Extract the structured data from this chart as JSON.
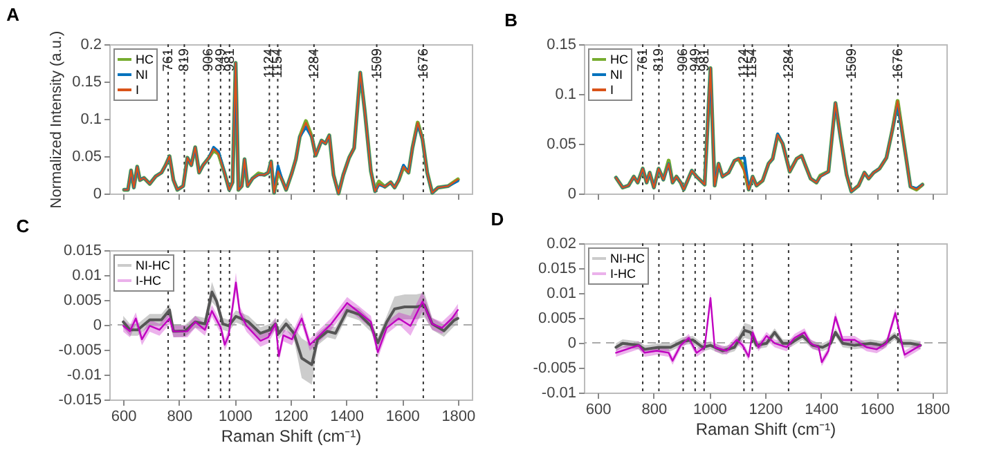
{
  "chart_data": [
    {
      "type": "line",
      "title": "A",
      "ylabel": "Normalized Intensity (a.u.)",
      "xlim": [
        550,
        1850
      ],
      "xticks": [
        600,
        800,
        1000,
        1200,
        1400,
        1600,
        1800
      ],
      "ylim": [
        0,
        0.2
      ],
      "yticks": [
        0,
        0.05,
        0.1,
        0.15,
        0.2
      ],
      "tick_labels": "y",
      "legend": "top left",
      "x": [
        603,
        617,
        628,
        638,
        650,
        660,
        674,
        695,
        716,
        737,
        752,
        766,
        780,
        794,
        815,
        830,
        844,
        858,
        872,
        886,
        907,
        924,
        942,
        963,
        980,
        992,
        1003,
        1013,
        1025,
        1035,
        1046,
        1063,
        1085,
        1106,
        1120,
        1130,
        1141,
        1155,
        1170,
        1184,
        1205,
        1219,
        1233,
        1255,
        1276,
        1290,
        1311,
        1325,
        1339,
        1354,
        1372,
        1389,
        1410,
        1428,
        1450,
        1466,
        1488,
        1503,
        1517,
        1538,
        1559,
        1573,
        1588,
        1605,
        1623,
        1637,
        1656,
        1673,
        1690,
        1708,
        1729,
        1765,
        1800
      ],
      "series": [
        {
          "name": "HC",
          "color": "#77ac30",
          "values": [
            0.005,
            0.005,
            0.031,
            0.008,
            0.036,
            0.018,
            0.021,
            0.013,
            0.023,
            0.028,
            0.038,
            0.05,
            0.018,
            0.005,
            0.01,
            0.048,
            0.038,
            0.062,
            0.028,
            0.038,
            0.048,
            0.058,
            0.053,
            0.028,
            0.005,
            0.015,
            0.175,
            0.005,
            0.01,
            0.046,
            0.01,
            0.02,
            0.027,
            0.025,
            0.028,
            0.043,
            0.001,
            0.03,
            0.018,
            0.005,
            0.028,
            0.046,
            0.076,
            0.097,
            0.076,
            0.051,
            0.071,
            0.067,
            0.078,
            0.025,
            0.0,
            0.025,
            0.048,
            0.061,
            0.162,
            0.111,
            0.03,
            0.003,
            0.016,
            0.009,
            0.015,
            0.008,
            0.018,
            0.036,
            0.028,
            0.061,
            0.095,
            0.073,
            0.028,
            0.001,
            0.008,
            0.01,
            0.019
          ]
        },
        {
          "name": "NI",
          "color": "#0072bd",
          "values": [
            0.005,
            0.005,
            0.031,
            0.008,
            0.036,
            0.018,
            0.021,
            0.013,
            0.023,
            0.028,
            0.038,
            0.05,
            0.018,
            0.005,
            0.01,
            0.048,
            0.038,
            0.062,
            0.028,
            0.038,
            0.048,
            0.062,
            0.056,
            0.028,
            0.005,
            0.015,
            0.175,
            0.005,
            0.01,
            0.046,
            0.01,
            0.02,
            0.025,
            0.025,
            0.028,
            0.043,
            0.001,
            0.037,
            0.018,
            0.005,
            0.028,
            0.046,
            0.076,
            0.089,
            0.076,
            0.051,
            0.071,
            0.067,
            0.078,
            0.025,
            0.0,
            0.025,
            0.048,
            0.061,
            0.162,
            0.111,
            0.03,
            0.003,
            0.012,
            0.009,
            0.015,
            0.008,
            0.018,
            0.038,
            0.028,
            0.061,
            0.093,
            0.073,
            0.028,
            0.001,
            0.008,
            0.01,
            0.017
          ]
        },
        {
          "name": "I",
          "color": "#d95319",
          "values": [
            0.005,
            0.005,
            0.031,
            0.008,
            0.036,
            0.018,
            0.021,
            0.013,
            0.023,
            0.028,
            0.038,
            0.05,
            0.018,
            0.005,
            0.01,
            0.048,
            0.038,
            0.062,
            0.028,
            0.038,
            0.048,
            0.06,
            0.053,
            0.028,
            0.005,
            0.015,
            0.175,
            0.005,
            0.01,
            0.046,
            0.01,
            0.02,
            0.025,
            0.025,
            0.028,
            0.043,
            0.001,
            0.03,
            0.018,
            0.005,
            0.028,
            0.046,
            0.076,
            0.095,
            0.076,
            0.051,
            0.071,
            0.067,
            0.078,
            0.025,
            0.0,
            0.025,
            0.048,
            0.061,
            0.162,
            0.111,
            0.03,
            0.003,
            0.013,
            0.009,
            0.015,
            0.008,
            0.018,
            0.036,
            0.028,
            0.061,
            0.095,
            0.073,
            0.028,
            0.001,
            0.008,
            0.01,
            0.019
          ]
        }
      ],
      "ref_lines": [
        {
          "axis": "x",
          "value": 761,
          "label": "761",
          "line_style": "dotted"
        },
        {
          "axis": "x",
          "value": 819,
          "label": "819",
          "line_style": "dotted"
        },
        {
          "axis": "x",
          "value": 906,
          "label": "906",
          "line_style": "dotted"
        },
        {
          "axis": "x",
          "value": 949,
          "label": "949",
          "line_style": "dotted"
        },
        {
          "axis": "x",
          "value": 981,
          "label": "981",
          "line_style": "dotted"
        },
        {
          "axis": "x",
          "value": 1124,
          "label": "1124",
          "line_style": "dotted"
        },
        {
          "axis": "x",
          "value": 1154,
          "label": "1154",
          "line_style": "dotted"
        },
        {
          "axis": "x",
          "value": 1284,
          "label": "1284",
          "line_style": "dotted"
        },
        {
          "axis": "x",
          "value": 1509,
          "label": "1509",
          "line_style": "dotted"
        },
        {
          "axis": "x",
          "value": 1676,
          "label": "1676",
          "line_style": "dotted"
        }
      ]
    },
    {
      "type": "line",
      "title": "B",
      "xlim": [
        550,
        1850
      ],
      "xticks": [
        600,
        800,
        1000,
        1200,
        1400,
        1600,
        1800
      ],
      "ylim": [
        0,
        0.15
      ],
      "yticks": [
        0,
        0.05,
        0.1,
        0.15
      ],
      "tick_labels": "y",
      "legend": "top left",
      "x": [
        665,
        689,
        710,
        729,
        743,
        761,
        775,
        786,
        801,
        818,
        835,
        854,
        868,
        882,
        897,
        908,
        937,
        954,
        983,
        1004,
        1019,
        1033,
        1047,
        1069,
        1090,
        1105,
        1126,
        1141,
        1155,
        1169,
        1191,
        1212,
        1227,
        1245,
        1263,
        1288,
        1313,
        1331,
        1346,
        1363,
        1384,
        1398,
        1427,
        1452,
        1470,
        1492,
        1509,
        1535,
        1556,
        1571,
        1589,
        1610,
        1635,
        1657,
        1675,
        1700,
        1721,
        1743,
        1764
      ],
      "series": [
        {
          "name": "HC",
          "color": "#77ac30",
          "values": [
            0.016,
            0.006,
            0.008,
            0.017,
            0.011,
            0.025,
            0.011,
            0.021,
            0.006,
            0.025,
            0.014,
            0.033,
            0.011,
            0.017,
            0.011,
            0.004,
            0.023,
            0.017,
            0.009,
            0.126,
            0.008,
            0.03,
            0.017,
            0.021,
            0.033,
            0.035,
            0.024,
            0.004,
            0.017,
            0.008,
            0.013,
            0.03,
            0.035,
            0.059,
            0.05,
            0.022,
            0.035,
            0.038,
            0.027,
            0.015,
            0.011,
            0.018,
            0.022,
            0.091,
            0.057,
            0.019,
            0.002,
            0.008,
            0.021,
            0.015,
            0.021,
            0.025,
            0.036,
            0.065,
            0.093,
            0.046,
            0.007,
            0.004,
            0.009
          ]
        },
        {
          "name": "NI",
          "color": "#0072bd",
          "values": [
            0.016,
            0.006,
            0.008,
            0.017,
            0.011,
            0.025,
            0.011,
            0.021,
            0.006,
            0.025,
            0.014,
            0.03,
            0.011,
            0.017,
            0.011,
            0.004,
            0.023,
            0.017,
            0.009,
            0.126,
            0.008,
            0.03,
            0.017,
            0.021,
            0.033,
            0.035,
            0.036,
            0.004,
            0.017,
            0.008,
            0.013,
            0.03,
            0.035,
            0.06,
            0.05,
            0.022,
            0.035,
            0.038,
            0.027,
            0.015,
            0.011,
            0.017,
            0.022,
            0.091,
            0.057,
            0.019,
            0.002,
            0.008,
            0.021,
            0.015,
            0.021,
            0.025,
            0.036,
            0.065,
            0.09,
            0.046,
            0.007,
            0.005,
            0.009
          ]
        },
        {
          "name": "I",
          "color": "#d95319",
          "values": [
            0.016,
            0.006,
            0.008,
            0.017,
            0.011,
            0.025,
            0.011,
            0.021,
            0.006,
            0.025,
            0.014,
            0.03,
            0.011,
            0.017,
            0.011,
            0.004,
            0.023,
            0.017,
            0.009,
            0.126,
            0.008,
            0.03,
            0.017,
            0.021,
            0.033,
            0.035,
            0.022,
            0.004,
            0.017,
            0.008,
            0.013,
            0.03,
            0.035,
            0.059,
            0.05,
            0.022,
            0.035,
            0.038,
            0.027,
            0.015,
            0.011,
            0.017,
            0.022,
            0.091,
            0.057,
            0.019,
            0.002,
            0.008,
            0.021,
            0.015,
            0.021,
            0.025,
            0.036,
            0.065,
            0.093,
            0.046,
            0.007,
            0.004,
            0.009
          ]
        }
      ],
      "ref_lines": [
        {
          "axis": "x",
          "value": 761,
          "label": "761",
          "line_style": "dotted"
        },
        {
          "axis": "x",
          "value": 819,
          "label": "819",
          "line_style": "dotted"
        },
        {
          "axis": "x",
          "value": 906,
          "label": "906",
          "line_style": "dotted"
        },
        {
          "axis": "x",
          "value": 949,
          "label": "949",
          "line_style": "dotted"
        },
        {
          "axis": "x",
          "value": 981,
          "label": "981",
          "line_style": "dotted"
        },
        {
          "axis": "x",
          "value": 1124,
          "label": "1124",
          "line_style": "dotted"
        },
        {
          "axis": "x",
          "value": 1154,
          "label": "1154",
          "line_style": "dotted"
        },
        {
          "axis": "x",
          "value": 1284,
          "label": "1284",
          "line_style": "dotted"
        },
        {
          "axis": "x",
          "value": 1509,
          "label": "1509",
          "line_style": "dotted"
        },
        {
          "axis": "x",
          "value": 1676,
          "label": "1676",
          "line_style": "dotted"
        }
      ]
    },
    {
      "type": "line",
      "title": "C",
      "xlabel": "Raman Shift (cm⁻¹)",
      "xlim": [
        550,
        1850
      ],
      "xticks": [
        600,
        800,
        1000,
        1200,
        1400,
        1600,
        1800
      ],
      "ylim": [
        -0.015,
        0.015
      ],
      "yticks": [
        -0.015,
        -0.01,
        -0.005,
        0,
        0.005,
        0.01,
        0.015
      ],
      "legend": "top left",
      "series": [
        {
          "name": "NI-HC",
          "color": "#555555",
          "x": [
            600,
            624,
            652,
            695,
            737,
            766,
            780,
            822,
            858,
            893,
            918,
            935,
            957,
            978,
            1004,
            1021,
            1049,
            1092,
            1127,
            1146,
            1158,
            1184,
            1212,
            1240,
            1276,
            1297,
            1332,
            1361,
            1403,
            1446,
            1488,
            1513,
            1545,
            1573,
            1609,
            1651,
            1680,
            1708,
            1750,
            1786,
            1800
          ],
          "values": [
            0.0006,
            -0.001,
            -0.001,
            0.001,
            0.001,
            0.003,
            -0.0013,
            -0.0012,
            0.0006,
            0.0002,
            0.0066,
            0.0047,
            0.0002,
            -0.0002,
            0.0017,
            0.0013,
            0.0006,
            -0.0017,
            -0.001,
            0.0002,
            -0.0017,
            0.0002,
            -0.0017,
            -0.0067,
            -0.008,
            -0.0029,
            -0.0013,
            -0.0017,
            0.0029,
            0.0021,
            -0.0002,
            -0.0036,
            0.0006,
            0.0032,
            0.0036,
            0.0036,
            0.004,
            0.0002,
            -0.0012,
            0.0009,
            0.0013
          ],
          "lower": [
            -0.0006,
            -0.0022,
            -0.0022,
            -0.0002,
            -0.0002,
            0.0018,
            -0.0025,
            -0.0024,
            -0.0006,
            -0.001,
            0.0046,
            0.0035,
            -0.001,
            -0.0014,
            0.0005,
            0.0001,
            -0.0006,
            -0.0029,
            -0.0022,
            -0.001,
            -0.0029,
            -0.001,
            -0.0029,
            -0.0107,
            -0.012,
            -0.0041,
            -0.0025,
            -0.0029,
            0.0017,
            0.0009,
            -0.0014,
            -0.0048,
            -0.0006,
            0.0007,
            0.0011,
            0.0011,
            0.0015,
            -0.001,
            -0.0024,
            -0.0003,
            0.0001
          ],
          "upper": [
            0.0018,
            0.0002,
            0.0002,
            0.0022,
            0.0022,
            0.0042,
            -0.0001,
            0,
            0.0018,
            0.0014,
            0.0086,
            0.0059,
            0.0014,
            0.001,
            0.0029,
            0.0025,
            0.0018,
            -0.0005,
            0.0002,
            0.0014,
            -0.0005,
            0.0014,
            -0.0005,
            -0.0027,
            -0.004,
            -0.0017,
            -0.0001,
            -0.0005,
            0.0041,
            0.0033,
            0.001,
            -0.0024,
            0.0018,
            0.0057,
            0.0061,
            0.0061,
            0.0065,
            0.0014,
            0,
            0.0021,
            0.0025
          ]
        },
        {
          "name": "I-HC",
          "color": "#c000c0",
          "x": [
            600,
            624,
            645,
            667,
            695,
            730,
            766,
            780,
            830,
            858,
            893,
            918,
            950,
            964,
            978,
            1004,
            1018,
            1042,
            1092,
            1120,
            1146,
            1158,
            1174,
            1205,
            1240,
            1269,
            1297,
            1346,
            1403,
            1446,
            1488,
            1513,
            1545,
            1588,
            1630,
            1673,
            1708,
            1743,
            1779,
            1800
          ],
          "values": [
            -0.0002,
            -0.0013,
            0.0013,
            -0.0029,
            -0.0002,
            -0.001,
            0.0013,
            -0.0013,
            -0.0013,
            0.0006,
            -0.001,
            0.0028,
            -0.0006,
            -0.004,
            -0.0021,
            0.0085,
            0.0025,
            -0.0002,
            -0.0032,
            -0.0025,
            0.0002,
            -0.0063,
            -0.0021,
            -0.0029,
            0.0013,
            -0.004,
            -0.0025,
            0.0002,
            0.0044,
            0.0025,
            0.0006,
            -0.0055,
            -0.0006,
            0.0013,
            -0.0002,
            0.0047,
            0.0002,
            -0.0006,
            0.0013,
            0.003
          ],
          "lower": [
            -0.0014,
            -0.0025,
            0.0001,
            -0.0041,
            -0.0014,
            -0.0022,
            0.0001,
            -0.0025,
            -0.0025,
            -0.0006,
            -0.0022,
            0.0016,
            -0.0018,
            -0.0052,
            -0.0033,
            0.0065,
            0.0013,
            -0.0014,
            -0.0044,
            -0.0037,
            -0.001,
            -0.0075,
            -0.0033,
            -0.0041,
            0.0001,
            -0.0052,
            -0.0037,
            -0.001,
            0.0032,
            0.0013,
            -0.0006,
            -0.0067,
            -0.0018,
            0.0001,
            -0.0022,
            0.0027,
            -0.001,
            -0.0018,
            0.0001,
            0.0018
          ],
          "upper": [
            0.001,
            -0.0001,
            0.0025,
            -0.0017,
            0.001,
            0.0002,
            0.0025,
            -0.0001,
            -0.0001,
            0.0018,
            0.0002,
            0.004,
            0.0006,
            -0.0028,
            -0.0009,
            0.0105,
            0.0037,
            0.001,
            -0.002,
            -0.0013,
            0.0014,
            -0.0051,
            -0.0009,
            -0.0017,
            0.0025,
            -0.0028,
            -0.0013,
            0.0014,
            0.0056,
            0.0037,
            0.0018,
            -0.0043,
            0.0006,
            0.0025,
            0.0018,
            0.0067,
            0.0014,
            0.0006,
            0.0025,
            0.0042
          ]
        }
      ],
      "ref_lines": [
        {
          "axis": "y",
          "value": 0,
          "line_style": "dashed",
          "color": "#aaaaaa"
        },
        {
          "axis": "x",
          "value": 761,
          "line_style": "dotted"
        },
        {
          "axis": "x",
          "value": 819,
          "line_style": "dotted"
        },
        {
          "axis": "x",
          "value": 906,
          "line_style": "dotted"
        },
        {
          "axis": "x",
          "value": 949,
          "line_style": "dotted"
        },
        {
          "axis": "x",
          "value": 981,
          "line_style": "dotted"
        },
        {
          "axis": "x",
          "value": 1124,
          "line_style": "dotted"
        },
        {
          "axis": "x",
          "value": 1154,
          "line_style": "dotted"
        },
        {
          "axis": "x",
          "value": 1284,
          "line_style": "dotted"
        },
        {
          "axis": "x",
          "value": 1509,
          "line_style": "dotted"
        },
        {
          "axis": "x",
          "value": 1676,
          "line_style": "dotted"
        }
      ]
    },
    {
      "type": "line",
      "title": "D",
      "xlabel": "Raman Shift (cm⁻¹)",
      "xlim": [
        550,
        1850
      ],
      "xticks": [
        600,
        800,
        1000,
        1200,
        1400,
        1600,
        1800
      ],
      "ylim": [
        -0.01,
        0.02
      ],
      "yticks": [
        -0.01,
        -0.005,
        0,
        0.005,
        0.01,
        0.015,
        0.02
      ],
      "legend": "top left",
      "series": [
        {
          "name": "NI-HC",
          "color": "#555555",
          "x": [
            665,
            689,
            746,
            768,
            818,
            861,
            904,
            940,
            976,
            1004,
            1047,
            1090,
            1126,
            1148,
            1169,
            1205,
            1234,
            1263,
            1291,
            1334,
            1370,
            1406,
            1435,
            1452,
            1478,
            1521,
            1578,
            1621,
            1664,
            1693,
            1721,
            1757
          ],
          "values": [
            -0.0009,
            -0.0001,
            -0.0005,
            -0.0013,
            -0.0009,
            -0.0009,
            0.0003,
            0.0006,
            -0.0009,
            -0.0005,
            -0.0016,
            -0.0009,
            0.0025,
            0.0021,
            -0.0005,
            -0.0001,
            0.0021,
            -0.0001,
            -0.0001,
            0.0014,
            -0.0005,
            -0.0009,
            -0.0001,
            0.0021,
            -0.0001,
            -0.0005,
            -0.0001,
            -0.0005,
            0.0014,
            -0.0001,
            -0.0001,
            -0.0005
          ],
          "lower": [
            -0.0017,
            -0.0009,
            -0.0013,
            -0.0021,
            -0.0017,
            -0.0017,
            -0.0005,
            -0.0002,
            -0.0017,
            -0.0013,
            -0.0024,
            -0.0017,
            0.001,
            0.0006,
            -0.0013,
            -0.0009,
            0.0013,
            -0.0009,
            -0.0009,
            0.0006,
            -0.0013,
            -0.0017,
            -0.0009,
            0.0013,
            -0.0009,
            -0.0013,
            -0.0009,
            -0.0013,
            0.0006,
            -0.0009,
            -0.0009,
            -0.0013
          ],
          "upper": [
            -0.0001,
            0.0007,
            0.0003,
            -0.0005,
            -0.0001,
            -0.0001,
            0.0011,
            0.0014,
            -0.0001,
            0.0003,
            -0.0008,
            -0.0001,
            0.004,
            0.0036,
            0.0003,
            0.0007,
            0.0029,
            0.0007,
            0.0007,
            0.0022,
            0.0003,
            -0.0001,
            0.0007,
            0.0029,
            0.0007,
            0.0003,
            0.0007,
            0.0003,
            0.0022,
            0.0007,
            0.0007,
            0.0003
          ]
        },
        {
          "name": "I-HC",
          "color": "#c000c0",
          "x": [
            665,
            703,
            746,
            768,
            811,
            854,
            868,
            897,
            926,
            954,
            983,
            1004,
            1019,
            1062,
            1098,
            1119,
            1141,
            1155,
            1176,
            1205,
            1234,
            1277,
            1306,
            1341,
            1363,
            1392,
            1403,
            1427,
            1452,
            1478,
            1521,
            1564,
            1600,
            1635,
            1667,
            1693,
            1700,
            1757
          ],
          "values": [
            -0.002,
            -0.0013,
            -0.0005,
            -0.002,
            -0.0016,
            -0.002,
            -0.0036,
            -0.0005,
            0.001,
            -0.002,
            -0.0009,
            0.009,
            -0.0009,
            -0.0016,
            0.0006,
            -0.0005,
            -0.0028,
            0.0021,
            -0.0009,
            0.0014,
            -0.0001,
            -0.0009,
            0.001,
            0.0021,
            -0.0001,
            -0.0009,
            -0.0039,
            -0.0016,
            0.0052,
            0.0006,
            0.0006,
            -0.0009,
            -0.0013,
            -0.0001,
            0.006,
            -0.0009,
            -0.0024,
            -0.0005
          ],
          "lower": [
            -0.0028,
            -0.0021,
            -0.0013,
            -0.0028,
            -0.0024,
            -0.0028,
            -0.0044,
            -0.0013,
            0.0002,
            -0.0028,
            -0.0017,
            0.008,
            -0.0017,
            -0.0024,
            -0.0002,
            -0.0013,
            -0.0036,
            0.0013,
            -0.0017,
            0.0006,
            -0.0009,
            -0.0017,
            0.0002,
            0.0013,
            -0.0009,
            -0.0017,
            -0.0047,
            -0.0024,
            0.0042,
            -0.0002,
            -0.0002,
            -0.0017,
            -0.0021,
            -0.0009,
            0.005,
            -0.0017,
            -0.0032,
            -0.0013
          ],
          "upper": [
            -0.0012,
            -0.0005,
            0.0003,
            -0.0012,
            -0.0008,
            -0.0012,
            -0.0028,
            0.0003,
            0.0018,
            -0.0012,
            -0.0001,
            0.01,
            -0.0001,
            -0.0008,
            0.0014,
            0.0003,
            -0.002,
            0.0029,
            -0.0001,
            0.0022,
            0.0007,
            -0.0001,
            0.0018,
            0.0029,
            0.0007,
            -0.0001,
            -0.0031,
            -0.0008,
            0.0062,
            0.0014,
            0.0014,
            -0.0001,
            -0.0005,
            0.0007,
            0.007,
            -0.0001,
            -0.0016,
            0.0003
          ]
        }
      ],
      "ref_lines": [
        {
          "axis": "y",
          "value": 0,
          "line_style": "dashed",
          "color": "#aaaaaa"
        },
        {
          "axis": "x",
          "value": 761,
          "line_style": "dotted"
        },
        {
          "axis": "x",
          "value": 819,
          "line_style": "dotted"
        },
        {
          "axis": "x",
          "value": 906,
          "line_style": "dotted"
        },
        {
          "axis": "x",
          "value": 949,
          "line_style": "dotted"
        },
        {
          "axis": "x",
          "value": 981,
          "line_style": "dotted"
        },
        {
          "axis": "x",
          "value": 1124,
          "line_style": "dotted"
        },
        {
          "axis": "x",
          "value": 1154,
          "line_style": "dotted"
        },
        {
          "axis": "x",
          "value": 1284,
          "line_style": "dotted"
        },
        {
          "axis": "x",
          "value": 1509,
          "line_style": "dotted"
        },
        {
          "axis": "x",
          "value": 1676,
          "line_style": "dotted"
        }
      ]
    }
  ]
}
